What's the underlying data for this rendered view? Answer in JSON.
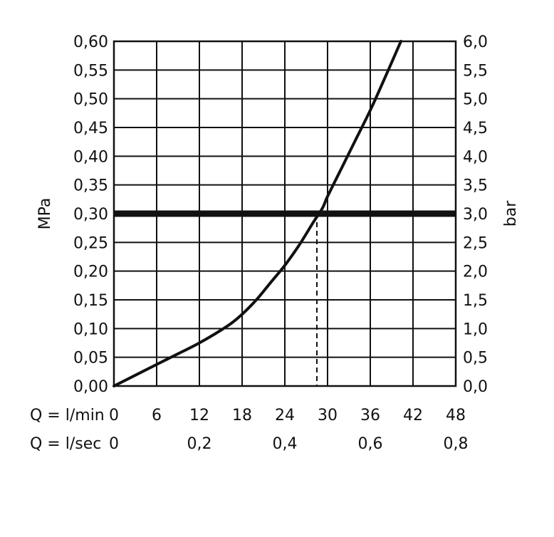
{
  "chart_data": {
    "type": "line",
    "ylabel_left": "MPa",
    "ylabel_right": "bar",
    "ylim_left": [
      0,
      0.6
    ],
    "ylim_right": [
      0,
      6
    ],
    "xlim": [
      0,
      48
    ],
    "grid": true,
    "y_ticks_left": [
      "0,00",
      "0,05",
      "0,10",
      "0,15",
      "0,20",
      "0,25",
      "0,30",
      "0,35",
      "0,40",
      "0,45",
      "0,50",
      "0,55",
      "0,60"
    ],
    "y_ticks_right": [
      "0,0",
      "0,5",
      "1,0",
      "1,5",
      "2,0",
      "2,5",
      "3,0",
      "3,5",
      "4,0",
      "4,5",
      "5,0",
      "5,5",
      "6,0"
    ],
    "x_axis_primary": {
      "label": "Q = l/min",
      "ticks": [
        {
          "value": 0,
          "label": "0"
        },
        {
          "value": 6,
          "label": "6"
        },
        {
          "value": 12,
          "label": "12"
        },
        {
          "value": 18,
          "label": "18"
        },
        {
          "value": 24,
          "label": "24"
        },
        {
          "value": 30,
          "label": "30"
        },
        {
          "value": 36,
          "label": "36"
        },
        {
          "value": 42,
          "label": "42"
        },
        {
          "value": 48,
          "label": "48"
        }
      ]
    },
    "x_axis_secondary": {
      "label": "Q = l/sec",
      "ticks": [
        {
          "value": 0,
          "label": "0"
        },
        {
          "value": 12,
          "label": "0,2"
        },
        {
          "value": 24,
          "label": "0,4"
        },
        {
          "value": 36,
          "label": "0,6"
        },
        {
          "value": 48,
          "label": "0,8"
        }
      ]
    },
    "series": [
      {
        "x": [
          0,
          4,
          8,
          12,
          16,
          18,
          20,
          22,
          24,
          26,
          28,
          29.3,
          30,
          32,
          34,
          36,
          38,
          40.3
        ],
        "values": [
          0,
          0.025,
          0.05,
          0.075,
          0.105,
          0.125,
          0.15,
          0.18,
          0.21,
          0.245,
          0.285,
          0.31,
          0.33,
          0.38,
          0.43,
          0.48,
          0.535,
          0.6
        ]
      }
    ],
    "reference_line": {
      "y": 0.3
    },
    "reference_drop": {
      "x": 28.5,
      "y": 0.3
    }
  }
}
